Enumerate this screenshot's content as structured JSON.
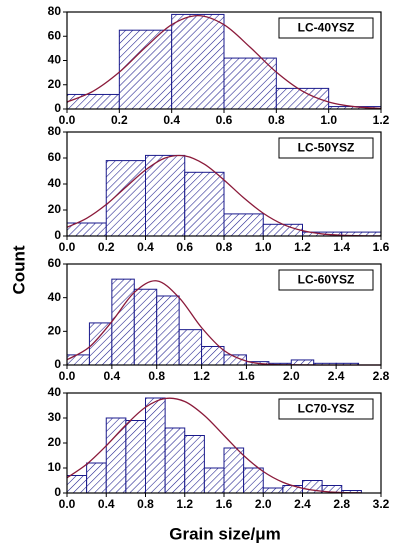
{
  "ylabel": "Count",
  "xlabel": "Grain size/μm",
  "chart_data": [
    {
      "type": "histogram",
      "label": "LC-40YSZ",
      "bins": [
        0,
        0.2,
        0.4,
        0.6,
        0.8,
        1.0,
        1.2
      ],
      "counts": [
        12,
        65,
        78,
        42,
        17,
        2
      ],
      "color": "#1a1a8c",
      "xlim": [
        0,
        1.2
      ],
      "xticks": [
        {
          "value": 0,
          "label": "0.0"
        },
        {
          "value": 0.2,
          "label": "0.2"
        },
        {
          "value": 0.4,
          "label": "0.4"
        },
        {
          "value": 0.6,
          "label": "0.6"
        },
        {
          "value": 0.8,
          "label": "0.8"
        },
        {
          "value": 1.0,
          "label": "1.0"
        },
        {
          "value": 1.2,
          "label": "1.2"
        }
      ],
      "ylim": [
        0,
        80
      ],
      "yticks": [
        0,
        20,
        40,
        60,
        80
      ],
      "fit": {
        "color": "#8b1a3a",
        "x": [
          0,
          0.1,
          0.2,
          0.3,
          0.4,
          0.5,
          0.6,
          0.7,
          0.8,
          0.9,
          1.0,
          1.1,
          1.2
        ],
        "values": [
          5.8,
          14.7,
          30.4,
          50.9,
          69.5,
          77,
          69.5,
          50.9,
          30.4,
          14.7,
          5.8,
          1.9,
          0.5
        ]
      }
    },
    {
      "type": "histogram",
      "label": "LC-50YSZ",
      "bins": [
        0,
        0.2,
        0.4,
        0.6,
        0.8,
        1.0,
        1.2,
        1.4,
        1.6
      ],
      "counts": [
        10,
        58,
        62,
        49,
        17,
        9,
        3,
        3
      ],
      "color": "#1a1a8c",
      "xlim": [
        0,
        1.6
      ],
      "xticks": [
        {
          "value": 0,
          "label": "0.0"
        },
        {
          "value": 0.2,
          "label": "0.2"
        },
        {
          "value": 0.4,
          "label": "0.4"
        },
        {
          "value": 0.6,
          "label": "0.6"
        },
        {
          "value": 0.8,
          "label": "0.8"
        },
        {
          "value": 1.0,
          "label": "1.0"
        },
        {
          "value": 1.2,
          "label": "1.2"
        },
        {
          "value": 1.4,
          "label": "1.4"
        },
        {
          "value": 1.6,
          "label": "1.6"
        }
      ],
      "ylim": [
        0,
        80
      ],
      "yticks": [
        0,
        20,
        40,
        60,
        80
      ],
      "fit": {
        "color": "#8b1a3a",
        "x": [
          0,
          0.1,
          0.2,
          0.3,
          0.4,
          0.5,
          0.6,
          0.7,
          0.8,
          0.9,
          1.0,
          1.1,
          1.2,
          1.3,
          1.4,
          1.5,
          1.6
        ],
        "values": [
          6.7,
          13.6,
          24.2,
          37.6,
          50.8,
          60,
          61.6,
          55.2,
          43.1,
          29.4,
          17.5,
          9,
          4.1,
          1.6,
          0.6,
          0.2,
          0.1
        ]
      }
    },
    {
      "type": "histogram",
      "label": "LC-60YSZ",
      "bins": [
        0,
        0.2,
        0.4,
        0.6,
        0.8,
        1.0,
        1.2,
        1.4,
        1.6,
        1.8,
        2.0,
        2.2,
        2.4,
        2.6
      ],
      "counts": [
        6,
        25,
        51,
        45,
        41,
        21,
        11,
        6,
        2,
        1,
        3,
        1,
        1
      ],
      "color": "#1a1a8c",
      "xlim": [
        0,
        2.8
      ],
      "xticks": [
        {
          "value": 0,
          "label": "0.0"
        },
        {
          "value": 0.4,
          "label": "0.4"
        },
        {
          "value": 0.8,
          "label": "0.8"
        },
        {
          "value": 1.2,
          "label": "1.2"
        },
        {
          "value": 1.6,
          "label": "1.6"
        },
        {
          "value": 2.0,
          "label": "2.0"
        },
        {
          "value": 2.4,
          "label": "2.4"
        },
        {
          "value": 2.8,
          "label": "2.8"
        }
      ],
      "ylim": [
        0,
        60
      ],
      "yticks": [
        0,
        20,
        40,
        60
      ],
      "fit": {
        "color": "#8b1a3a",
        "x": [
          0,
          0.2,
          0.4,
          0.6,
          0.8,
          1.0,
          1.2,
          1.4,
          1.6,
          1.8,
          2.0,
          2.4,
          2.8
        ],
        "values": [
          3.1,
          10.7,
          25.8,
          43.1,
          50,
          40,
          22.2,
          8.6,
          2.3,
          0.4,
          0.1,
          0,
          0
        ]
      }
    },
    {
      "type": "histogram",
      "label": "LC70-YSZ",
      "bins": [
        0,
        0.2,
        0.4,
        0.6,
        0.8,
        1.0,
        1.2,
        1.4,
        1.6,
        1.8,
        2.0,
        2.2,
        2.4,
        2.6,
        2.8,
        3.0
      ],
      "counts": [
        7,
        12,
        30,
        29,
        38,
        26,
        23,
        10,
        18,
        10,
        2,
        3,
        5,
        3,
        1
      ],
      "color": "#1a1a8c",
      "xlim": [
        0,
        3.2
      ],
      "xticks": [
        {
          "value": 0,
          "label": "0.0"
        },
        {
          "value": 0.4,
          "label": "0.4"
        },
        {
          "value": 0.8,
          "label": "0.8"
        },
        {
          "value": 1.2,
          "label": "1.2"
        },
        {
          "value": 1.6,
          "label": "1.6"
        },
        {
          "value": 2.0,
          "label": "2.0"
        },
        {
          "value": 2.4,
          "label": "2.4"
        },
        {
          "value": 2.8,
          "label": "2.8"
        },
        {
          "value": 3.2,
          "label": "3.2"
        }
      ],
      "ylim": [
        0,
        40
      ],
      "yticks": [
        0,
        10,
        20,
        30,
        40
      ],
      "fit": {
        "color": "#8b1a3a",
        "x": [
          0,
          0.2,
          0.4,
          0.6,
          0.8,
          1.0,
          1.2,
          1.4,
          1.6,
          1.8,
          2.0,
          2.2,
          2.4,
          2.6,
          2.8,
          3.0
        ],
        "values": [
          6.1,
          11.5,
          18.9,
          27.2,
          34.3,
          37.8,
          36.6,
          31,
          23,
          15,
          8.6,
          4.3,
          1.9,
          0.7,
          0.2,
          0.1
        ]
      }
    }
  ]
}
